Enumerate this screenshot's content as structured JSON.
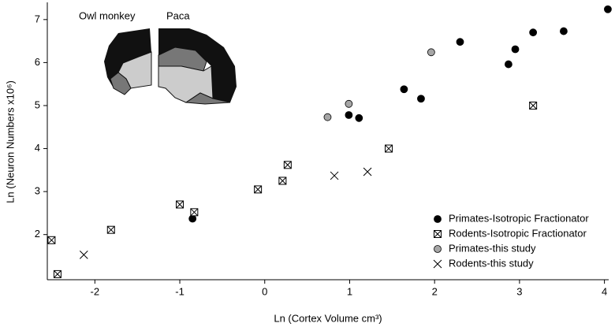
{
  "chart_data": {
    "type": "scatter",
    "xlabel": "Ln (Cortex Volume cm³)",
    "ylabel": "Ln (Neuron Numbers x10⁶)",
    "inset_labels": [
      "Owl monkey",
      "Paca"
    ],
    "xlim": [
      -2.56,
      4.05
    ],
    "ylim": [
      0.95,
      7.4
    ],
    "xticks": [
      -2,
      -1,
      0,
      1,
      2,
      3,
      4
    ],
    "yticks": [
      2,
      3,
      4,
      5,
      6,
      7
    ],
    "legend": "lower right",
    "series": [
      {
        "name": "Primates-Isotropic Fractionator",
        "color": "#000000",
        "marker": "circle",
        "x": [
          4.04,
          2.3,
          3.16,
          3.52,
          2.95,
          2.87,
          1.64,
          1.84,
          0.99,
          1.11,
          -0.85
        ],
        "values": [
          7.24,
          6.48,
          6.7,
          6.73,
          6.31,
          5.96,
          5.38,
          5.16,
          4.78,
          4.71,
          2.37
        ]
      },
      {
        "name": "Rodents-Isotropic Fractionator",
        "color": "#000000",
        "marker": "boxx",
        "x": [
          -2.51,
          -2.44,
          -1.81,
          -1.0,
          -0.83,
          -0.08,
          0.21,
          0.27,
          1.46,
          3.16
        ],
        "values": [
          1.87,
          1.08,
          2.11,
          2.7,
          2.52,
          3.05,
          3.25,
          3.62,
          4.0,
          5.0
        ]
      },
      {
        "name": "Primates-this study",
        "color": "#a6a6a6",
        "marker": "circle",
        "x": [
          0.99,
          0.74,
          1.96
        ],
        "values": [
          5.04,
          4.73,
          6.24
        ]
      },
      {
        "name": "Rodents-this study",
        "color": "#000000",
        "marker": "x",
        "x": [
          -2.13,
          0.82,
          1.21
        ],
        "values": [
          1.53,
          3.37,
          3.46
        ]
      }
    ]
  }
}
